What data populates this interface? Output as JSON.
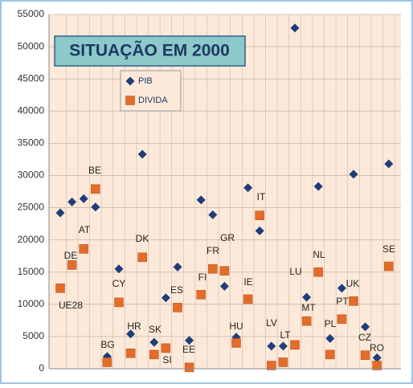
{
  "chart_data": {
    "type": "scatter",
    "title": "SITUAÇÃO EM  2000",
    "categories": [
      "UE28",
      "DE",
      "AT",
      "BE",
      "BG",
      "CY",
      "HR",
      "DK",
      "SK",
      "SI",
      "ES",
      "EE",
      "FI",
      "FR",
      "GR",
      "HU",
      "IE",
      "IT",
      "LV",
      "LT",
      "LU",
      "MT",
      "NL",
      "PL",
      "PT",
      "UK",
      "CZ",
      "RO",
      "SE"
    ],
    "series": [
      {
        "name": "PIB",
        "color": "#1f3d7a",
        "marker": "diamond",
        "values": [
          24200,
          25900,
          26400,
          25100,
          1900,
          15500,
          5400,
          33300,
          4100,
          11000,
          15800,
          4400,
          26200,
          23900,
          12800,
          4900,
          28100,
          21400,
          3500,
          3500,
          52900,
          11100,
          28300,
          4700,
          12500,
          30200,
          6500,
          1700,
          31800
        ]
      },
      {
        "name": "DIVIDA",
        "color": "#e46c2a",
        "marker": "square",
        "values": [
          12500,
          16100,
          18600,
          27900,
          1000,
          10300,
          2400,
          17300,
          2200,
          3200,
          9500,
          200,
          11500,
          15500,
          15200,
          4000,
          10800,
          23800,
          500,
          1000,
          3700,
          7400,
          15000,
          2200,
          7700,
          10500,
          2100,
          500,
          15900
        ]
      }
    ],
    "ylim": [
      0,
      55000
    ],
    "yticks": [
      0,
      5000,
      10000,
      15000,
      20000,
      25000,
      30000,
      35000,
      40000,
      45000,
      50000,
      55000
    ],
    "grid": true
  }
}
